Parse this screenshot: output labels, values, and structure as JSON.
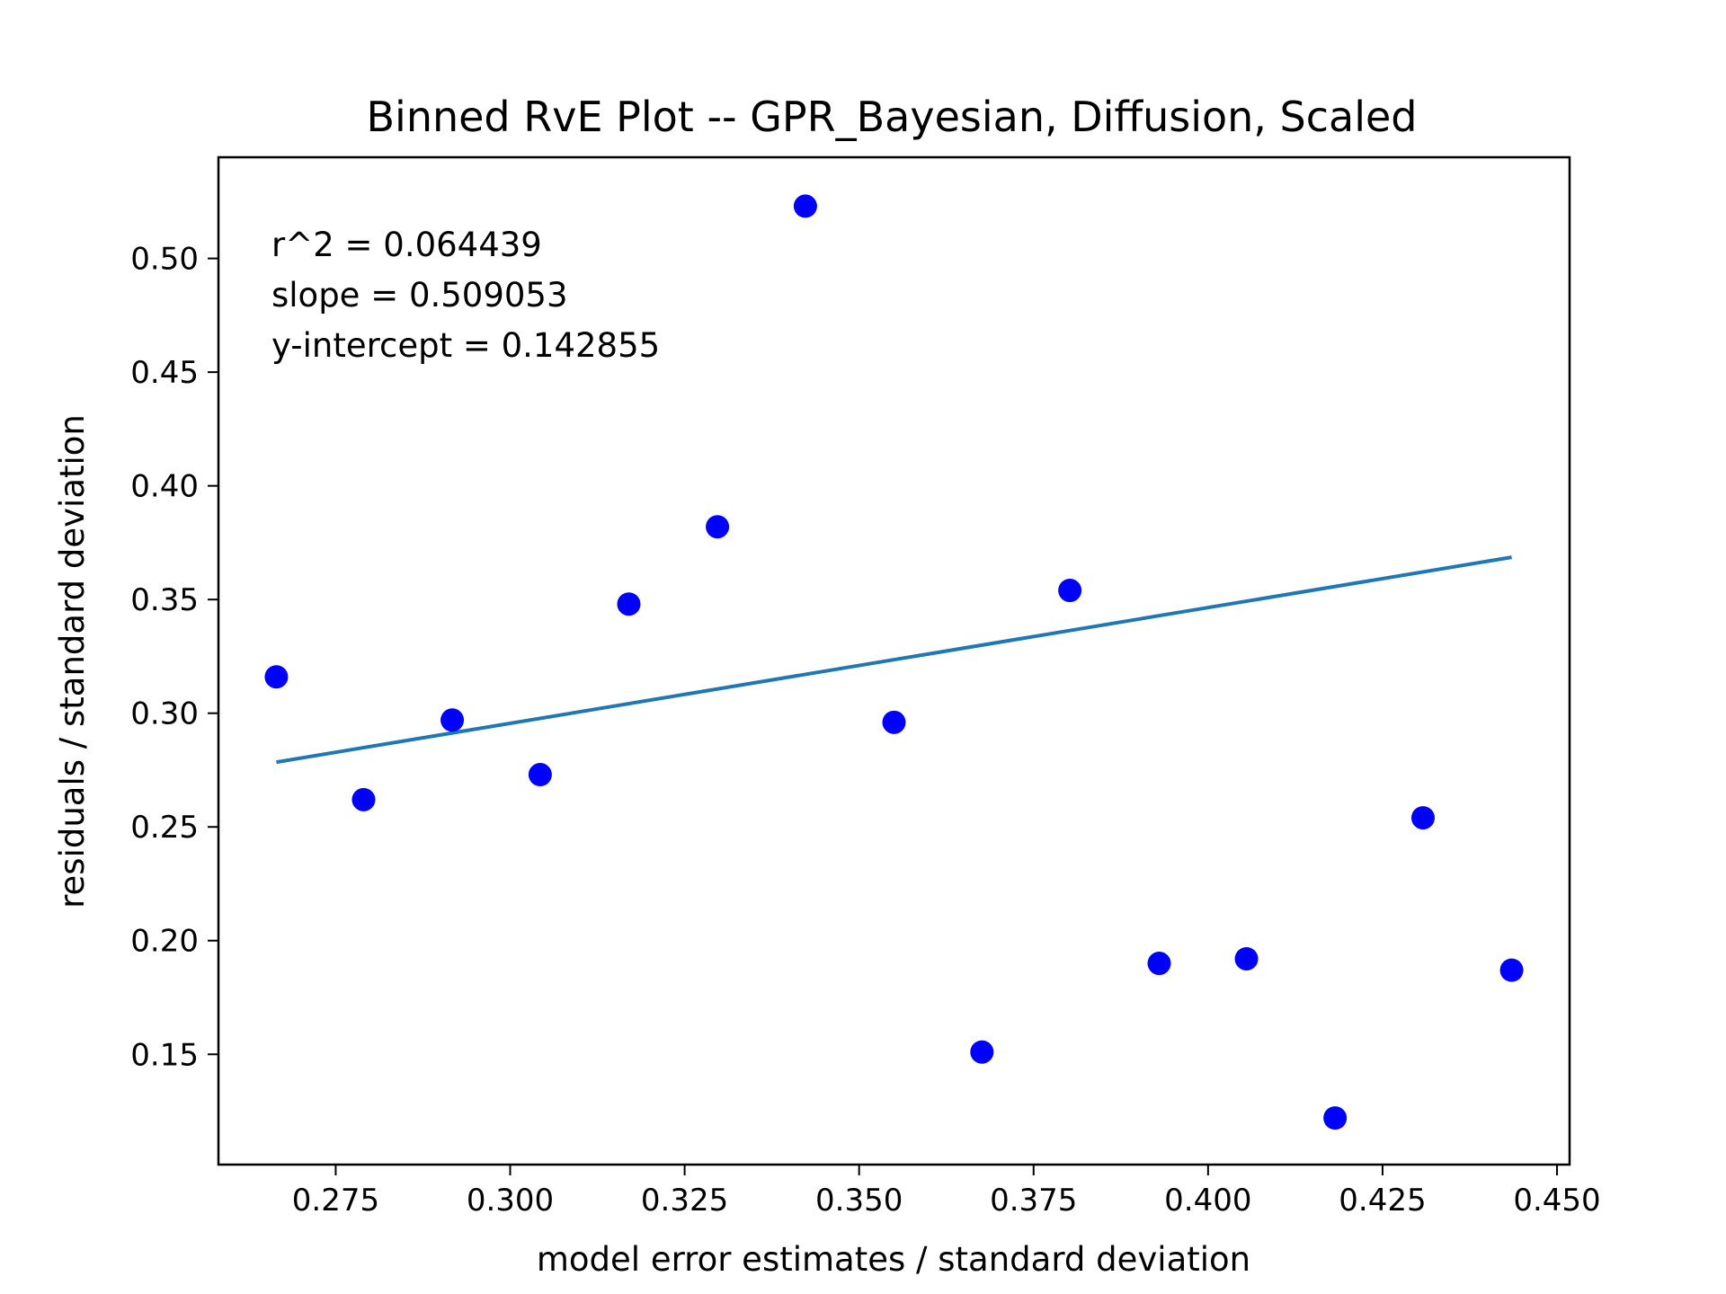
{
  "chart_data": {
    "type": "scatter",
    "title": "Binned RvE Plot -- GPR_Bayesian, Diffusion, Scaled",
    "xlabel": "model error estimates / standard deviation",
    "ylabel": "residuals / standard deviation",
    "xlim": [
      0.2582,
      0.4518
    ],
    "ylim": [
      0.1015,
      0.5445
    ],
    "x_ticks": [
      "0.275",
      "0.300",
      "0.325",
      "0.350",
      "0.375",
      "0.400",
      "0.425",
      "0.450"
    ],
    "y_ticks": [
      "0.15",
      "0.20",
      "0.25",
      "0.30",
      "0.35",
      "0.40",
      "0.45",
      "0.50"
    ],
    "grid": false,
    "series": [
      {
        "kind": "points",
        "color": "#0000ff",
        "x": [
          0.2665,
          0.279,
          0.2917,
          0.3043,
          0.317,
          0.3297,
          0.3423,
          0.355,
          0.3676,
          0.3802,
          0.393,
          0.4055,
          0.4182,
          0.4308,
          0.4435
        ],
        "y": [
          0.316,
          0.262,
          0.297,
          0.273,
          0.348,
          0.382,
          0.523,
          0.296,
          0.151,
          0.354,
          0.19,
          0.192,
          0.122,
          0.254,
          0.187
        ]
      },
      {
        "kind": "fit-line",
        "color": "#1f77b4",
        "x": [
          0.2665,
          0.4435
        ],
        "y": [
          0.2785,
          0.3686
        ]
      }
    ],
    "annotations": [
      "r^2 = 0.064439",
      "slope = 0.509053",
      "y-intercept = 0.142855"
    ]
  }
}
